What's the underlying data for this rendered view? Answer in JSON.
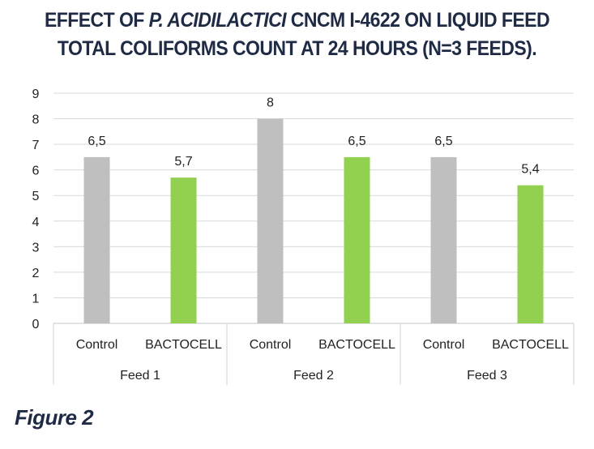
{
  "chart_data": {
    "type": "bar",
    "title_parts": [
      "EFFECT OF ",
      "P. ACIDILACTICI",
      " CNCM I-4622 ON LIQUID FEED"
    ],
    "title_line2": "TOTAL COLIFORMS COUNT AT 24 HOURS (N=3 FEEDS).",
    "groups": [
      "Feed 1",
      "Feed 2",
      "Feed 3"
    ],
    "categories": [
      "Control",
      "BACTOCELL",
      "Control",
      "BACTOCELL",
      "Control",
      "BACTOCELL"
    ],
    "values": [
      6.5,
      5.7,
      8,
      6.5,
      6.5,
      5.4
    ],
    "data_labels": [
      "6,5",
      "5,7",
      "8",
      "6,5",
      "6,5",
      "5,4"
    ],
    "colors": [
      "#bfbfbf",
      "#92d050",
      "#bfbfbf",
      "#92d050",
      "#bfbfbf",
      "#92d050"
    ],
    "yticks": [
      "0",
      "1",
      "2",
      "3",
      "4",
      "5",
      "6",
      "7",
      "8",
      "9"
    ],
    "ylim": [
      0,
      9
    ],
    "grid": true,
    "xlabel": "",
    "ylabel": ""
  },
  "caption": "Figure 2"
}
